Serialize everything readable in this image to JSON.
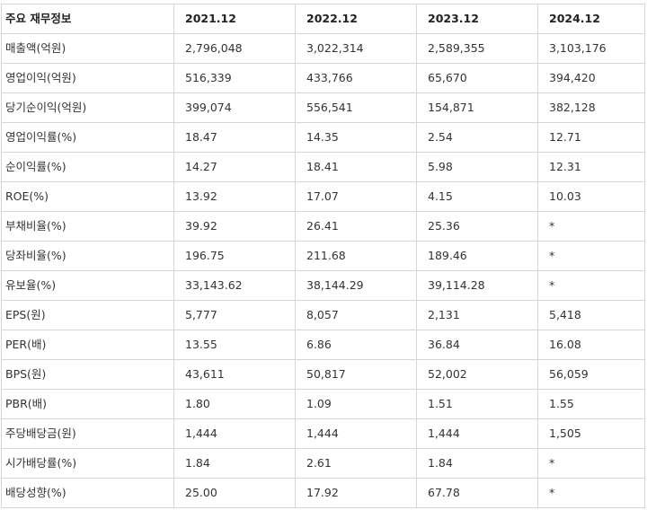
{
  "table": {
    "header": [
      "주요 재무정보",
      "2021.12",
      "2022.12",
      "2023.12",
      "2024.12"
    ],
    "rows": [
      [
        "매출액(억원)",
        "2,796,048",
        "3,022,314",
        "2,589,355",
        "3,103,176"
      ],
      [
        "영업이익(억원)",
        "516,339",
        "433,766",
        "65,670",
        "394,420"
      ],
      [
        "당기순이익(억원)",
        "399,074",
        "556,541",
        "154,871",
        "382,128"
      ],
      [
        "영업이익률(%)",
        "18.47",
        "14.35",
        "2.54",
        "12.71"
      ],
      [
        "순이익률(%)",
        "14.27",
        "18.41",
        "5.98",
        "12.31"
      ],
      [
        "ROE(%)",
        "13.92",
        "17.07",
        "4.15",
        "10.03"
      ],
      [
        "부채비율(%)",
        "39.92",
        "26.41",
        "25.36",
        "*"
      ],
      [
        "당좌비율(%)",
        "196.75",
        "211.68",
        "189.46",
        "*"
      ],
      [
        "유보율(%)",
        "33,143.62",
        "38,144.29",
        "39,114.28",
        "*"
      ],
      [
        "EPS(원)",
        "5,777",
        "8,057",
        "2,131",
        "5,418"
      ],
      [
        "PER(배)",
        "13.55",
        "6.86",
        "36.84",
        "16.08"
      ],
      [
        "BPS(원)",
        "43,611",
        "50,817",
        "52,002",
        "56,059"
      ],
      [
        "PBR(배)",
        "1.80",
        "1.09",
        "1.51",
        "1.55"
      ],
      [
        "주당배당금(원)",
        "1,444",
        "1,444",
        "1,444",
        "1,505"
      ],
      [
        "시가배당률(%)",
        "1.84",
        "2.61",
        "1.84",
        "*"
      ],
      [
        "배당성향(%)",
        "25.00",
        "17.92",
        "67.78",
        "*"
      ]
    ]
  }
}
